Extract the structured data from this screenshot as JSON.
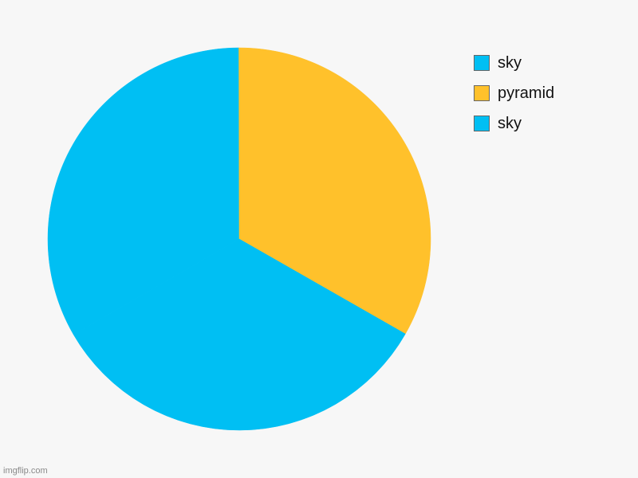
{
  "chart_data": {
    "type": "pie",
    "title": "",
    "start_angle_deg": -120,
    "direction": "clockwise",
    "slices": [
      {
        "label": "sky",
        "value": 33.3,
        "color": "#00bff3"
      },
      {
        "label": "pyramid",
        "value": 33.3,
        "color": "#ffc12b"
      },
      {
        "label": "sky",
        "value": 33.4,
        "color": "#00bff3"
      }
    ],
    "legend": {
      "placement": "top-right",
      "entries": [
        {
          "label": "sky",
          "color": "#00bff3"
        },
        {
          "label": "pyramid",
          "color": "#ffc12b"
        },
        {
          "label": "sky",
          "color": "#00bff3"
        }
      ]
    }
  },
  "watermark": "imgflip.com"
}
